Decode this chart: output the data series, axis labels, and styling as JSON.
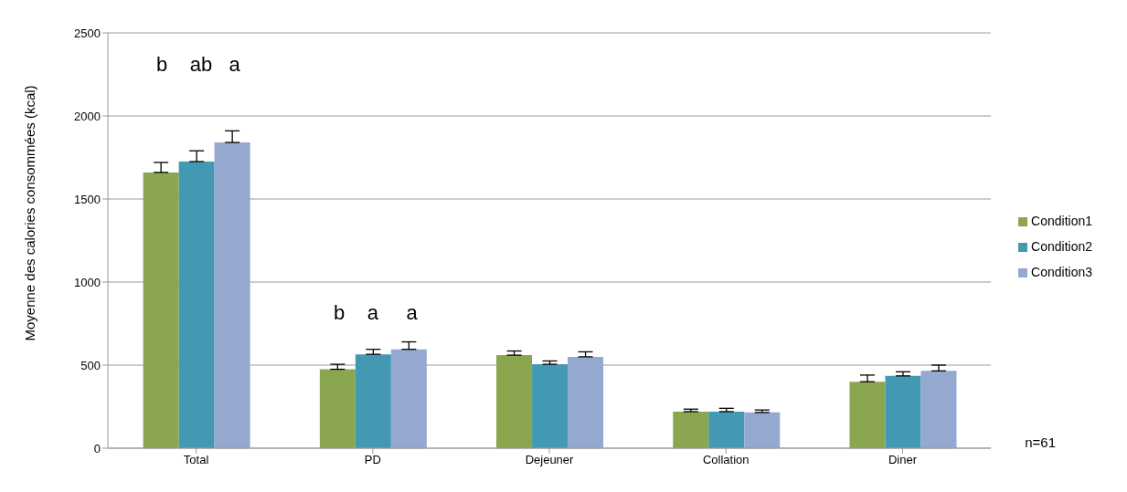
{
  "chart_data": {
    "type": "bar",
    "ylabel": "Moyenne des calories consommées (kcal)",
    "categories": [
      "Total",
      "PD",
      "Dejeuner",
      "Collation",
      "Diner"
    ],
    "series": [
      {
        "name": "Condition1",
        "color": "#8aa64f",
        "values": [
          1660,
          475,
          560,
          220,
          400
        ],
        "errors": [
          [
            1660,
            1720
          ],
          [
            475,
            505
          ],
          [
            560,
            585
          ],
          [
            220,
            235
          ],
          [
            400,
            440
          ]
        ]
      },
      {
        "name": "Condition2",
        "color": "#4399b1",
        "values": [
          1725,
          565,
          505,
          220,
          435
        ],
        "errors": [
          [
            1725,
            1790
          ],
          [
            565,
            595
          ],
          [
            505,
            525
          ],
          [
            220,
            240
          ],
          [
            435,
            460
          ]
        ]
      },
      {
        "name": "Condition3",
        "color": "#94a8d0",
        "values": [
          1840,
          595,
          550,
          215,
          465
        ],
        "errors": [
          [
            1840,
            1910
          ],
          [
            595,
            640
          ],
          [
            550,
            580
          ],
          [
            215,
            230
          ],
          [
            465,
            500
          ]
        ]
      }
    ],
    "ylim": [
      0,
      2500
    ],
    "yticks": [
      0,
      500,
      1000,
      1500,
      2000,
      2500
    ],
    "grid": "y",
    "legend": "right",
    "annotations": [
      "b    ab   a",
      "b    a     a",
      "n=61"
    ]
  }
}
